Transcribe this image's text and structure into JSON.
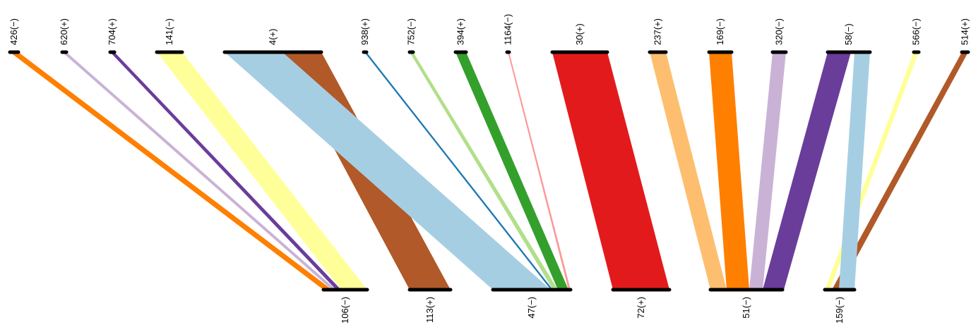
{
  "top_contigs": [
    {
      "id": "c426",
      "label": "426(−)"
    },
    {
      "id": "c620",
      "label": "620(+)"
    },
    {
      "id": "c704",
      "label": "704(+)"
    },
    {
      "id": "c141",
      "label": "141(−)"
    },
    {
      "id": "c4",
      "label": "4(+)"
    },
    {
      "id": "c938",
      "label": "938(+)"
    },
    {
      "id": "c752",
      "label": "752(−)"
    },
    {
      "id": "c394",
      "label": "394(+)"
    },
    {
      "id": "c1164",
      "label": "1164(−)"
    },
    {
      "id": "c30",
      "label": "30(+)"
    },
    {
      "id": "c237",
      "label": "237(+)"
    },
    {
      "id": "c169",
      "label": "169(−)"
    },
    {
      "id": "c320",
      "label": "320(−)"
    },
    {
      "id": "c58",
      "label": "58(−)"
    },
    {
      "id": "c566",
      "label": "566(−)"
    },
    {
      "id": "c514",
      "label": "514(+)"
    }
  ],
  "bottom_contigs": [
    {
      "id": "b106",
      "label": "106(−)"
    },
    {
      "id": "b113",
      "label": "113(+)"
    },
    {
      "id": "b47",
      "label": "47(−)"
    },
    {
      "id": "b72",
      "label": "72(+)"
    },
    {
      "id": "b51",
      "label": "51(−)"
    },
    {
      "id": "b159",
      "label": "159(−)"
    }
  ],
  "links": [
    {
      "from": "426(−)",
      "to": "106(−)",
      "color": "#ff7f00"
    },
    {
      "from": "620(+)",
      "to": "106(−)",
      "color": "#cab2d6"
    },
    {
      "from": "704(+)",
      "to": "106(−)",
      "color": "#6a3d9a"
    },
    {
      "from": "141(−)",
      "to": "106(−)",
      "color": "#ffff99"
    },
    {
      "from": "4(+)",
      "to": "113(+)",
      "color": "#b15928"
    },
    {
      "from": "4(+)",
      "to": "47(−)",
      "color": "#a6cee3"
    },
    {
      "from": "938(+)",
      "to": "47(−)",
      "color": "#1f78b4"
    },
    {
      "from": "752(−)",
      "to": "47(−)",
      "color": "#b2df8a"
    },
    {
      "from": "394(+)",
      "to": "47(−)",
      "color": "#33a02c"
    },
    {
      "from": "1164(−)",
      "to": "47(−)",
      "color": "#fb9a99"
    },
    {
      "from": "30(+)",
      "to": "72(+)",
      "color": "#e31a1c"
    },
    {
      "from": "237(+)",
      "to": "51(−)",
      "color": "#fdbf6f"
    },
    {
      "from": "169(−)",
      "to": "51(−)",
      "color": "#ff7f00"
    },
    {
      "from": "320(−)",
      "to": "51(−)",
      "color": "#cab2d6"
    },
    {
      "from": "58(−)",
      "to": "51(−)",
      "color": "#6a3d9a"
    },
    {
      "from": "566(−)",
      "to": "159(−)",
      "color": "#ffff99"
    },
    {
      "from": "514(+)",
      "to": "159(−)",
      "color": "#b15928"
    },
    {
      "from": "58(−)",
      "to": "159(−)",
      "color": "#a6cee3"
    }
  ]
}
